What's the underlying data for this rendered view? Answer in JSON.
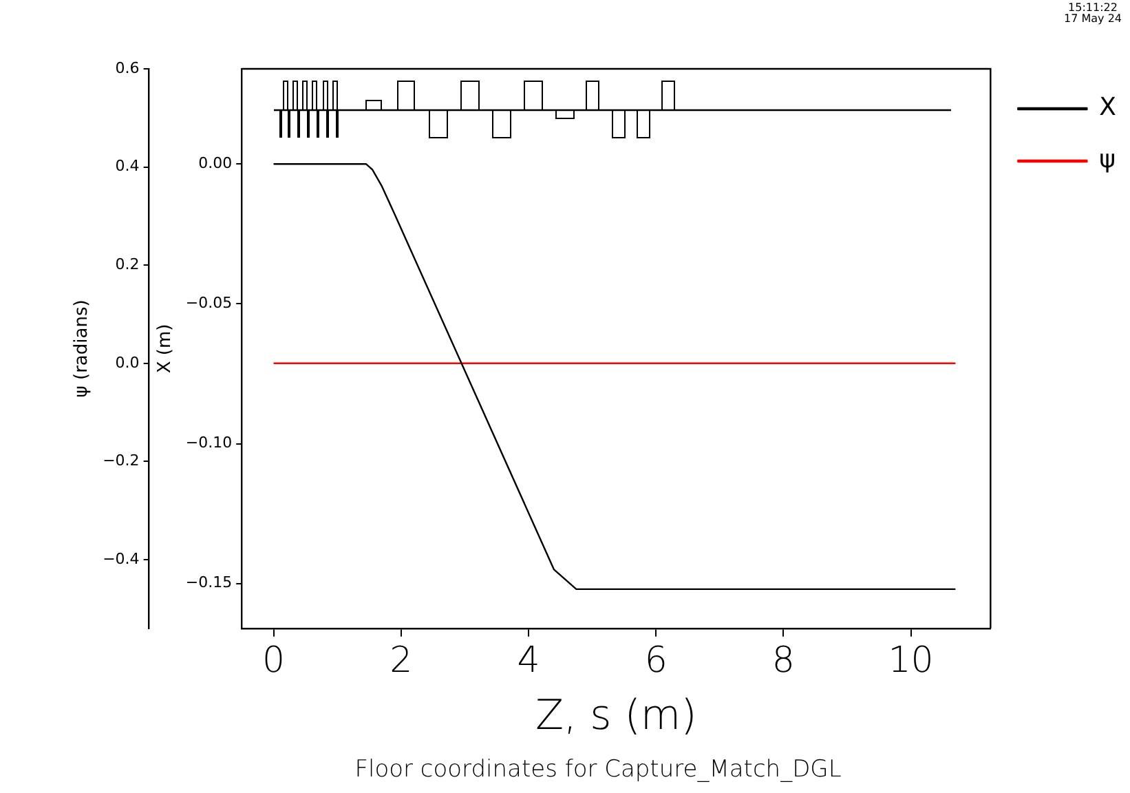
{
  "chart_data": {
    "type": "line",
    "title": "Floor coordinates for Capture_Match_DGL",
    "xlabel": "Z, s (m)",
    "ylabel": "X (m)",
    "y2label": "ψ (radians)",
    "annotations": [
      "15:11:22\n17 May 24"
    ],
    "xlim": [
      -0.5,
      11.25
    ],
    "xticks": [
      0,
      2,
      4,
      6,
      8,
      10
    ],
    "ylim": [
      -0.166,
      0.034
    ],
    "yticks": [
      {
        "value": 0,
        "label": "0.00"
      },
      {
        "value": -0.05,
        "label": "−0.05"
      },
      {
        "value": -0.1,
        "label": "−0.10"
      },
      {
        "value": -0.15,
        "label": "−0.15"
      }
    ],
    "y2lim": [
      -0.54,
      0.6
    ],
    "y2ticks": [
      {
        "value": -0.4,
        "label": "−0.4"
      },
      {
        "value": -0.2,
        "label": "−0.2"
      },
      {
        "value": 0,
        "label": "0.0"
      },
      {
        "value": 0.2,
        "label": "0.2"
      },
      {
        "value": 0.4,
        "label": "0.4"
      },
      {
        "value": 0.6,
        "label": "0.6"
      }
    ],
    "legend": "right",
    "grid": false,
    "marker": "none",
    "line_style": "solid",
    "series": [
      {
        "name": "X",
        "color": "#000000",
        "x": [
          0,
          1.45,
          1.55,
          1.7,
          1.9,
          4.4,
          4.75,
          10.7
        ],
        "values": [
          0,
          0,
          -0.002,
          -0.008,
          -0.018,
          -0.145,
          -0.152,
          -0.152
        ]
      },
      {
        "name": "ψ",
        "color": "#ff0000",
        "axis": "y2",
        "x": [
          0,
          10.7
        ],
        "values": [
          0,
          0
        ]
      }
    ]
  }
}
